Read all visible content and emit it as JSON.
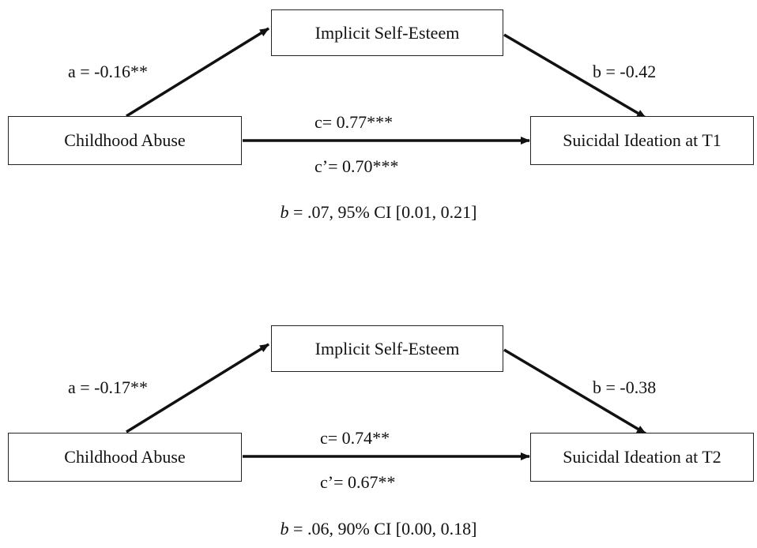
{
  "models": [
    {
      "mediator": "Implicit Self-Esteem",
      "predictor": "Childhood Abuse",
      "outcome": "Suicidal Ideation at T1",
      "path_a": "a = -0.16**",
      "path_b": "b = -0.42",
      "path_c": "c= 0.77***",
      "path_c_prime": "c’= 0.70***",
      "indirect_symbol": "b",
      "indirect_text": " = .07, 95% CI [0.01, 0.21]"
    },
    {
      "mediator": "Implicit Self-Esteem",
      "predictor": "Childhood Abuse",
      "outcome": "Suicidal Ideation at T2",
      "path_a": "a = -0.17**",
      "path_b": "b = -0.38",
      "path_c": "c= 0.74**",
      "path_c_prime": "c’= 0.67**",
      "indirect_symbol": "b",
      "indirect_text": " = .06, 90% CI [0.00, 0.18]"
    }
  ],
  "colors": {
    "line": "#111111",
    "box_border": "#222222",
    "background": "#ffffff"
  }
}
